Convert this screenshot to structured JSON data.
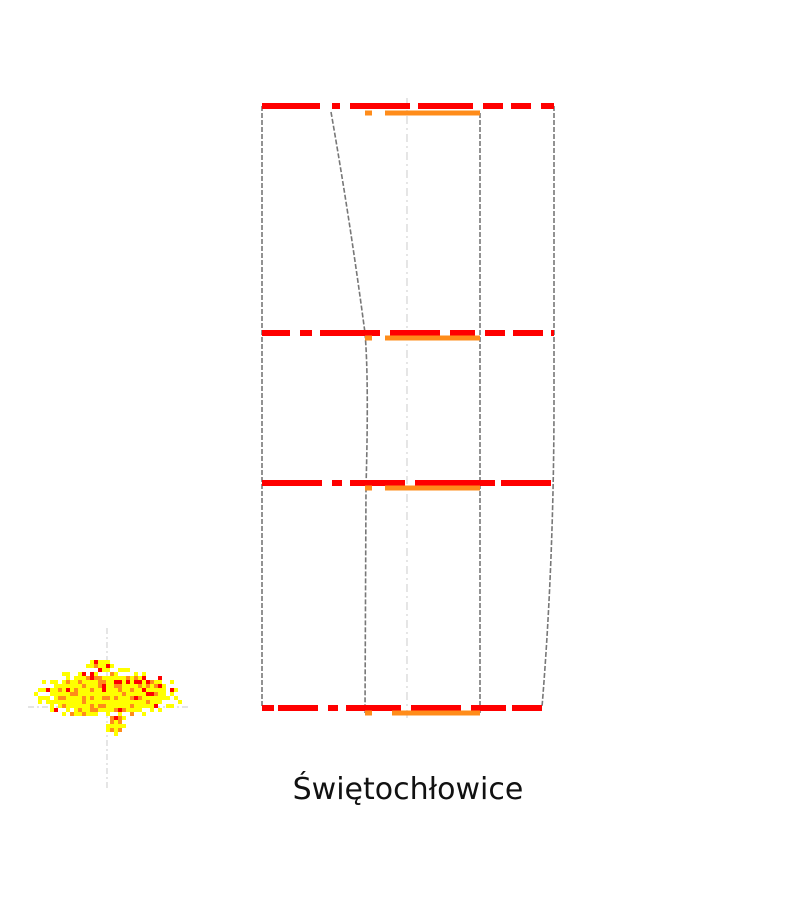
{
  "title": "Świętochłowice",
  "colors": {
    "primary": "#ff0000",
    "secondary": "#ff8c1a",
    "tertiary": "#ffff00",
    "outline": "#777777",
    "axis": "#cccccc",
    "background": "#ffffff"
  }
}
